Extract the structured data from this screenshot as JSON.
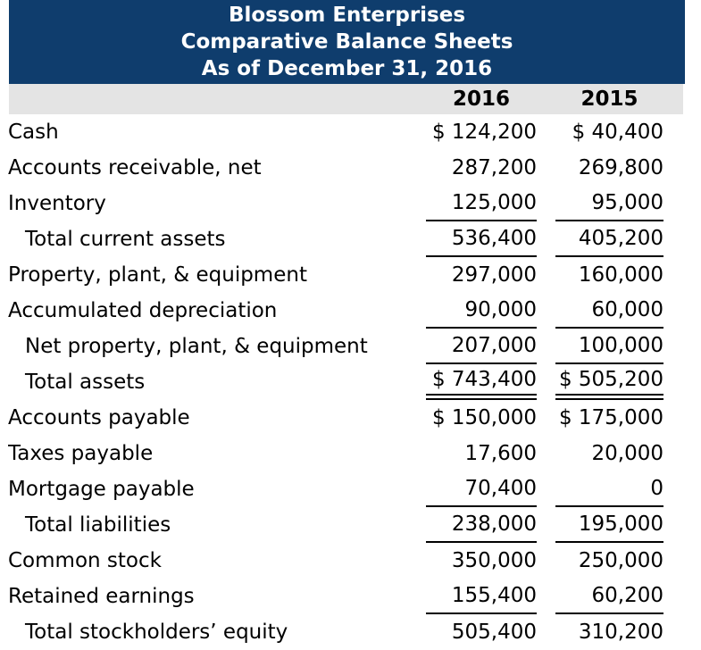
{
  "header": {
    "company": "Blossom Enterprises",
    "report": "Comparative Balance Sheets",
    "date": "As of December 31, 2016"
  },
  "columns": {
    "col1": "2016",
    "col2": "2015"
  },
  "rows": [
    {
      "label": "Cash",
      "v2016": "$ 124,200",
      "v2015": "$ 40,400",
      "indent": false,
      "rule": "none"
    },
    {
      "label": "Accounts receivable, net",
      "v2016": "287,200",
      "v2015": "269,800",
      "indent": false,
      "rule": "none"
    },
    {
      "label": "Inventory",
      "v2016": "125,000",
      "v2015": "95,000",
      "indent": false,
      "rule": "single"
    },
    {
      "label": "Total current assets",
      "v2016": "536,400",
      "v2015": "405,200",
      "indent": true,
      "rule": "single"
    },
    {
      "label": "Property, plant, & equipment",
      "v2016": "297,000",
      "v2015": "160,000",
      "indent": false,
      "rule": "none"
    },
    {
      "label": "Accumulated depreciation",
      "v2016": "90,000",
      "v2015": "60,000",
      "indent": false,
      "rule": "single"
    },
    {
      "label": "Net property, plant, & equipment",
      "v2016": "207,000",
      "v2015": "100,000",
      "indent": true,
      "rule": "single"
    },
    {
      "label": "Total assets",
      "v2016": "$ 743,400",
      "v2015": "$ 505,200",
      "indent": true,
      "rule": "double"
    },
    {
      "label": "Accounts payable",
      "v2016": "$ 150,000",
      "v2015": "$ 175,000",
      "indent": false,
      "rule": "none"
    },
    {
      "label": "Taxes payable",
      "v2016": "17,600",
      "v2015": "20,000",
      "indent": false,
      "rule": "none"
    },
    {
      "label": "Mortgage payable",
      "v2016": "70,400",
      "v2015": "0",
      "indent": false,
      "rule": "single"
    },
    {
      "label": "Total liabilities",
      "v2016": "238,000",
      "v2015": "195,000",
      "indent": true,
      "rule": "single"
    },
    {
      "label": "Common stock",
      "v2016": "350,000",
      "v2015": "250,000",
      "indent": false,
      "rule": "none"
    },
    {
      "label": "Retained earnings",
      "v2016": "155,400",
      "v2015": "60,200",
      "indent": false,
      "rule": "single"
    },
    {
      "label": "Total stockholders’ equity",
      "v2016": "505,400",
      "v2015": "310,200",
      "indent": true,
      "rule": "none"
    }
  ],
  "colors": {
    "header_bg": "#0f3d6d",
    "header_text": "#ffffff",
    "subheader_bg": "#e4e4e4",
    "body_text": "#000000",
    "rule_color": "#000000"
  }
}
